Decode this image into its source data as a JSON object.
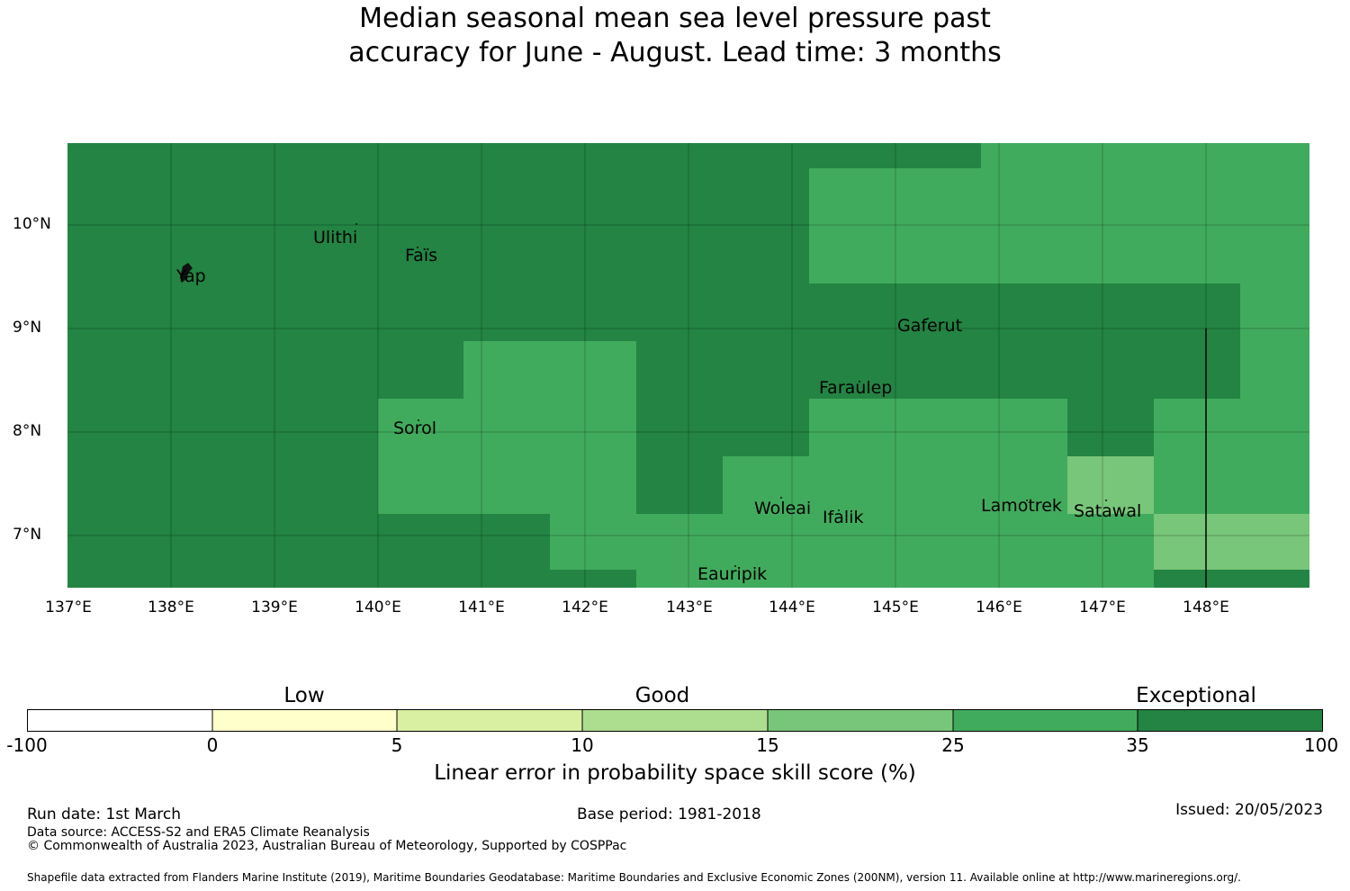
{
  "title": {
    "line1": "Median seasonal mean sea level pressure past",
    "line2": "accuracy for June - August. Lead time: 3 months"
  },
  "map": {
    "lat_labels": [
      "10°N",
      "9°N",
      "8°N",
      "7°N"
    ],
    "lon_labels": [
      "137°E",
      "138°E",
      "139°E",
      "140°E",
      "141°E",
      "142°E",
      "143°E",
      "144°E",
      "145°E",
      "146°E",
      "147°E",
      "148°E"
    ],
    "places": [
      {
        "name": "Yap"
      },
      {
        "name": "Ulithi"
      },
      {
        "name": "Faïs"
      },
      {
        "name": "Gaferut"
      },
      {
        "name": "Faraulep"
      },
      {
        "name": "Sorol"
      },
      {
        "name": "Woleai"
      },
      {
        "name": "Ifalik"
      },
      {
        "name": "Lamotrek"
      },
      {
        "name": "Satawal"
      },
      {
        "name": "Eauripik"
      }
    ],
    "skill_colors": {
      "exceptional": "#238443",
      "very_good": "#41ab5d",
      "good": "#78c679"
    }
  },
  "colorbar": {
    "categories": [
      "Low",
      "Good",
      "Exceptional"
    ],
    "ticks": [
      "-100",
      "0",
      "5",
      "10",
      "15",
      "25",
      "35",
      "100"
    ],
    "colors": [
      "#ffffff",
      "#ffffcc",
      "#d9f0a3",
      "#addd8e",
      "#78c679",
      "#41ab5d",
      "#238443"
    ],
    "label": "Linear error in probability space skill score (%)"
  },
  "footer": {
    "run_date": "Run date: 1st March",
    "base_period": "Base period: 1981-2018",
    "issued": "Issued: 20/05/2023",
    "data_source": "Data source: ACCESS-S2 and ERA5 Climate Reanalysis",
    "copyright": "© Commonwealth of Australia 2023, Australian Bureau of Meteorology, Supported by COSPPac",
    "shapefile": "Shapefile data extracted from Flanders Marine Institute (2019), Maritime Boundaries Geodatabase: Maritime Boundaries and Exclusive Economic Zones (200NM), version 11. Available online at http://www.marineregions.org/."
  }
}
